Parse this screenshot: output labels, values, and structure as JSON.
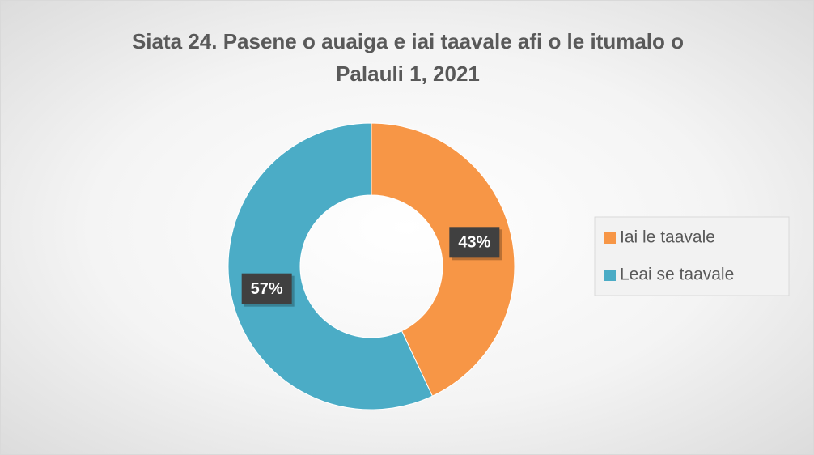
{
  "chart_data": {
    "type": "donut",
    "title": "Siata 24. Pasene o auaiga e iai taavale afi o le itumalo o Palauli 1, 2021",
    "categories": [
      "Iai le taavale",
      "Leai se taavale"
    ],
    "values": [
      43,
      57
    ],
    "value_labels": [
      "43%",
      "57%"
    ],
    "colors": [
      "#f79646",
      "#4bacc6"
    ],
    "legend": "right"
  }
}
